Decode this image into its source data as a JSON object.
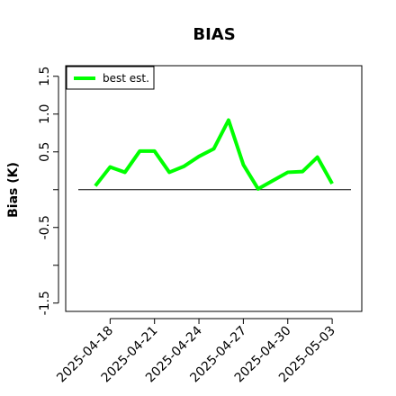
{
  "chart_data": {
    "type": "line",
    "title": "BIAS",
    "ylabel": "Bias (K)",
    "x": [
      "2025-04-17",
      "2025-04-18",
      "2025-04-19",
      "2025-04-20",
      "2025-04-21",
      "2025-04-22",
      "2025-04-23",
      "2025-04-24",
      "2025-04-25",
      "2025-04-26",
      "2025-04-27",
      "2025-04-28",
      "2025-04-29",
      "2025-04-30",
      "2025-05-01",
      "2025-05-02",
      "2025-05-03"
    ],
    "series": [
      {
        "name": "best est.",
        "color": "#00ff00",
        "values": [
          0.05,
          0.3,
          0.23,
          0.51,
          0.51,
          0.23,
          0.31,
          0.44,
          0.54,
          0.92,
          0.33,
          0.01,
          0.12,
          0.23,
          0.24,
          0.43,
          0.08
        ]
      }
    ],
    "xlim": [
      "2025-04-15",
      "2025-05-05"
    ],
    "xticks": [
      "2025-04-18",
      "2025-04-21",
      "2025-04-24",
      "2025-04-27",
      "2025-04-30",
      "2025-05-03"
    ],
    "ylim": [
      -1.61,
      1.64
    ],
    "yticks": [
      1.5,
      {
        "value": 1,
        "label": "1.0"
      },
      0.5,
      -0.5,
      -1.5
    ],
    "yticks_unlabeled": [
      0,
      -1
    ],
    "hline": 0,
    "legend": "top-left"
  }
}
